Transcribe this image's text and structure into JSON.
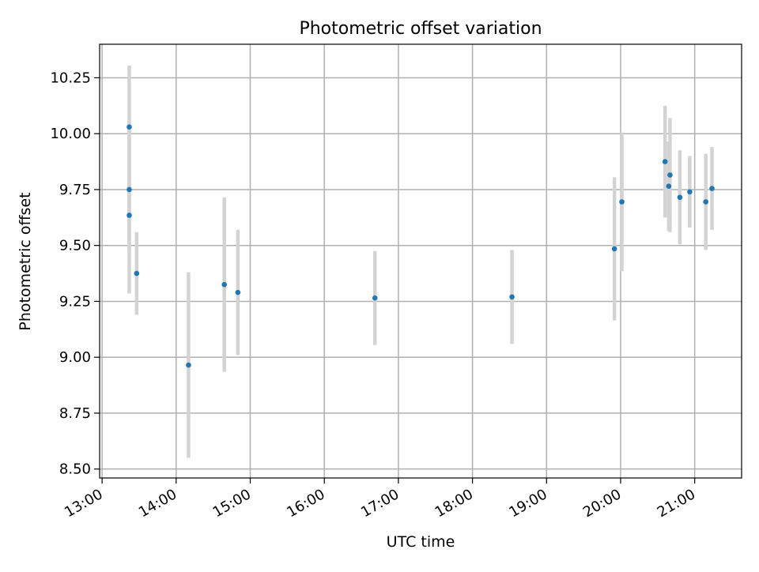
{
  "chart_data": {
    "type": "scatter",
    "title": "Photometric offset variation",
    "xlabel": "UTC time",
    "ylabel": "Photometric offset",
    "xlim": [
      "12:58",
      "21:38"
    ],
    "ylim": [
      8.46,
      10.4
    ],
    "x_ticks": [
      "13:00",
      "14:00",
      "15:00",
      "16:00",
      "17:00",
      "18:00",
      "19:00",
      "20:00",
      "21:00"
    ],
    "y_ticks": [
      "8.50",
      "8.75",
      "9.00",
      "9.25",
      "9.50",
      "9.75",
      "10.00",
      "10.25"
    ],
    "grid": true,
    "colors": {
      "points": "#1f77b4",
      "errorbars": "#d3d3d3",
      "grid": "#b0b0b0"
    },
    "series": [
      {
        "x": [
          "13:22",
          "13:22",
          "13:22",
          "13:28",
          "14:10",
          "14:39",
          "14:50",
          "16:41",
          "18:32",
          "19:55",
          "20:01",
          "20:36",
          "20:40",
          "20:39",
          "20:48",
          "20:56",
          "21:09",
          "21:14"
        ],
        "y": [
          10.03,
          9.75,
          9.635,
          9.375,
          8.965,
          9.325,
          9.29,
          9.265,
          9.27,
          9.485,
          9.695,
          9.875,
          9.815,
          9.765,
          9.715,
          9.74,
          9.695,
          9.755
        ],
        "yerr": [
          0.275,
          0.27,
          0.35,
          0.185,
          0.415,
          0.39,
          0.28,
          0.21,
          0.21,
          0.32,
          0.31,
          0.25,
          0.255,
          0.2,
          0.21,
          0.16,
          0.215,
          0.185
        ]
      }
    ]
  }
}
